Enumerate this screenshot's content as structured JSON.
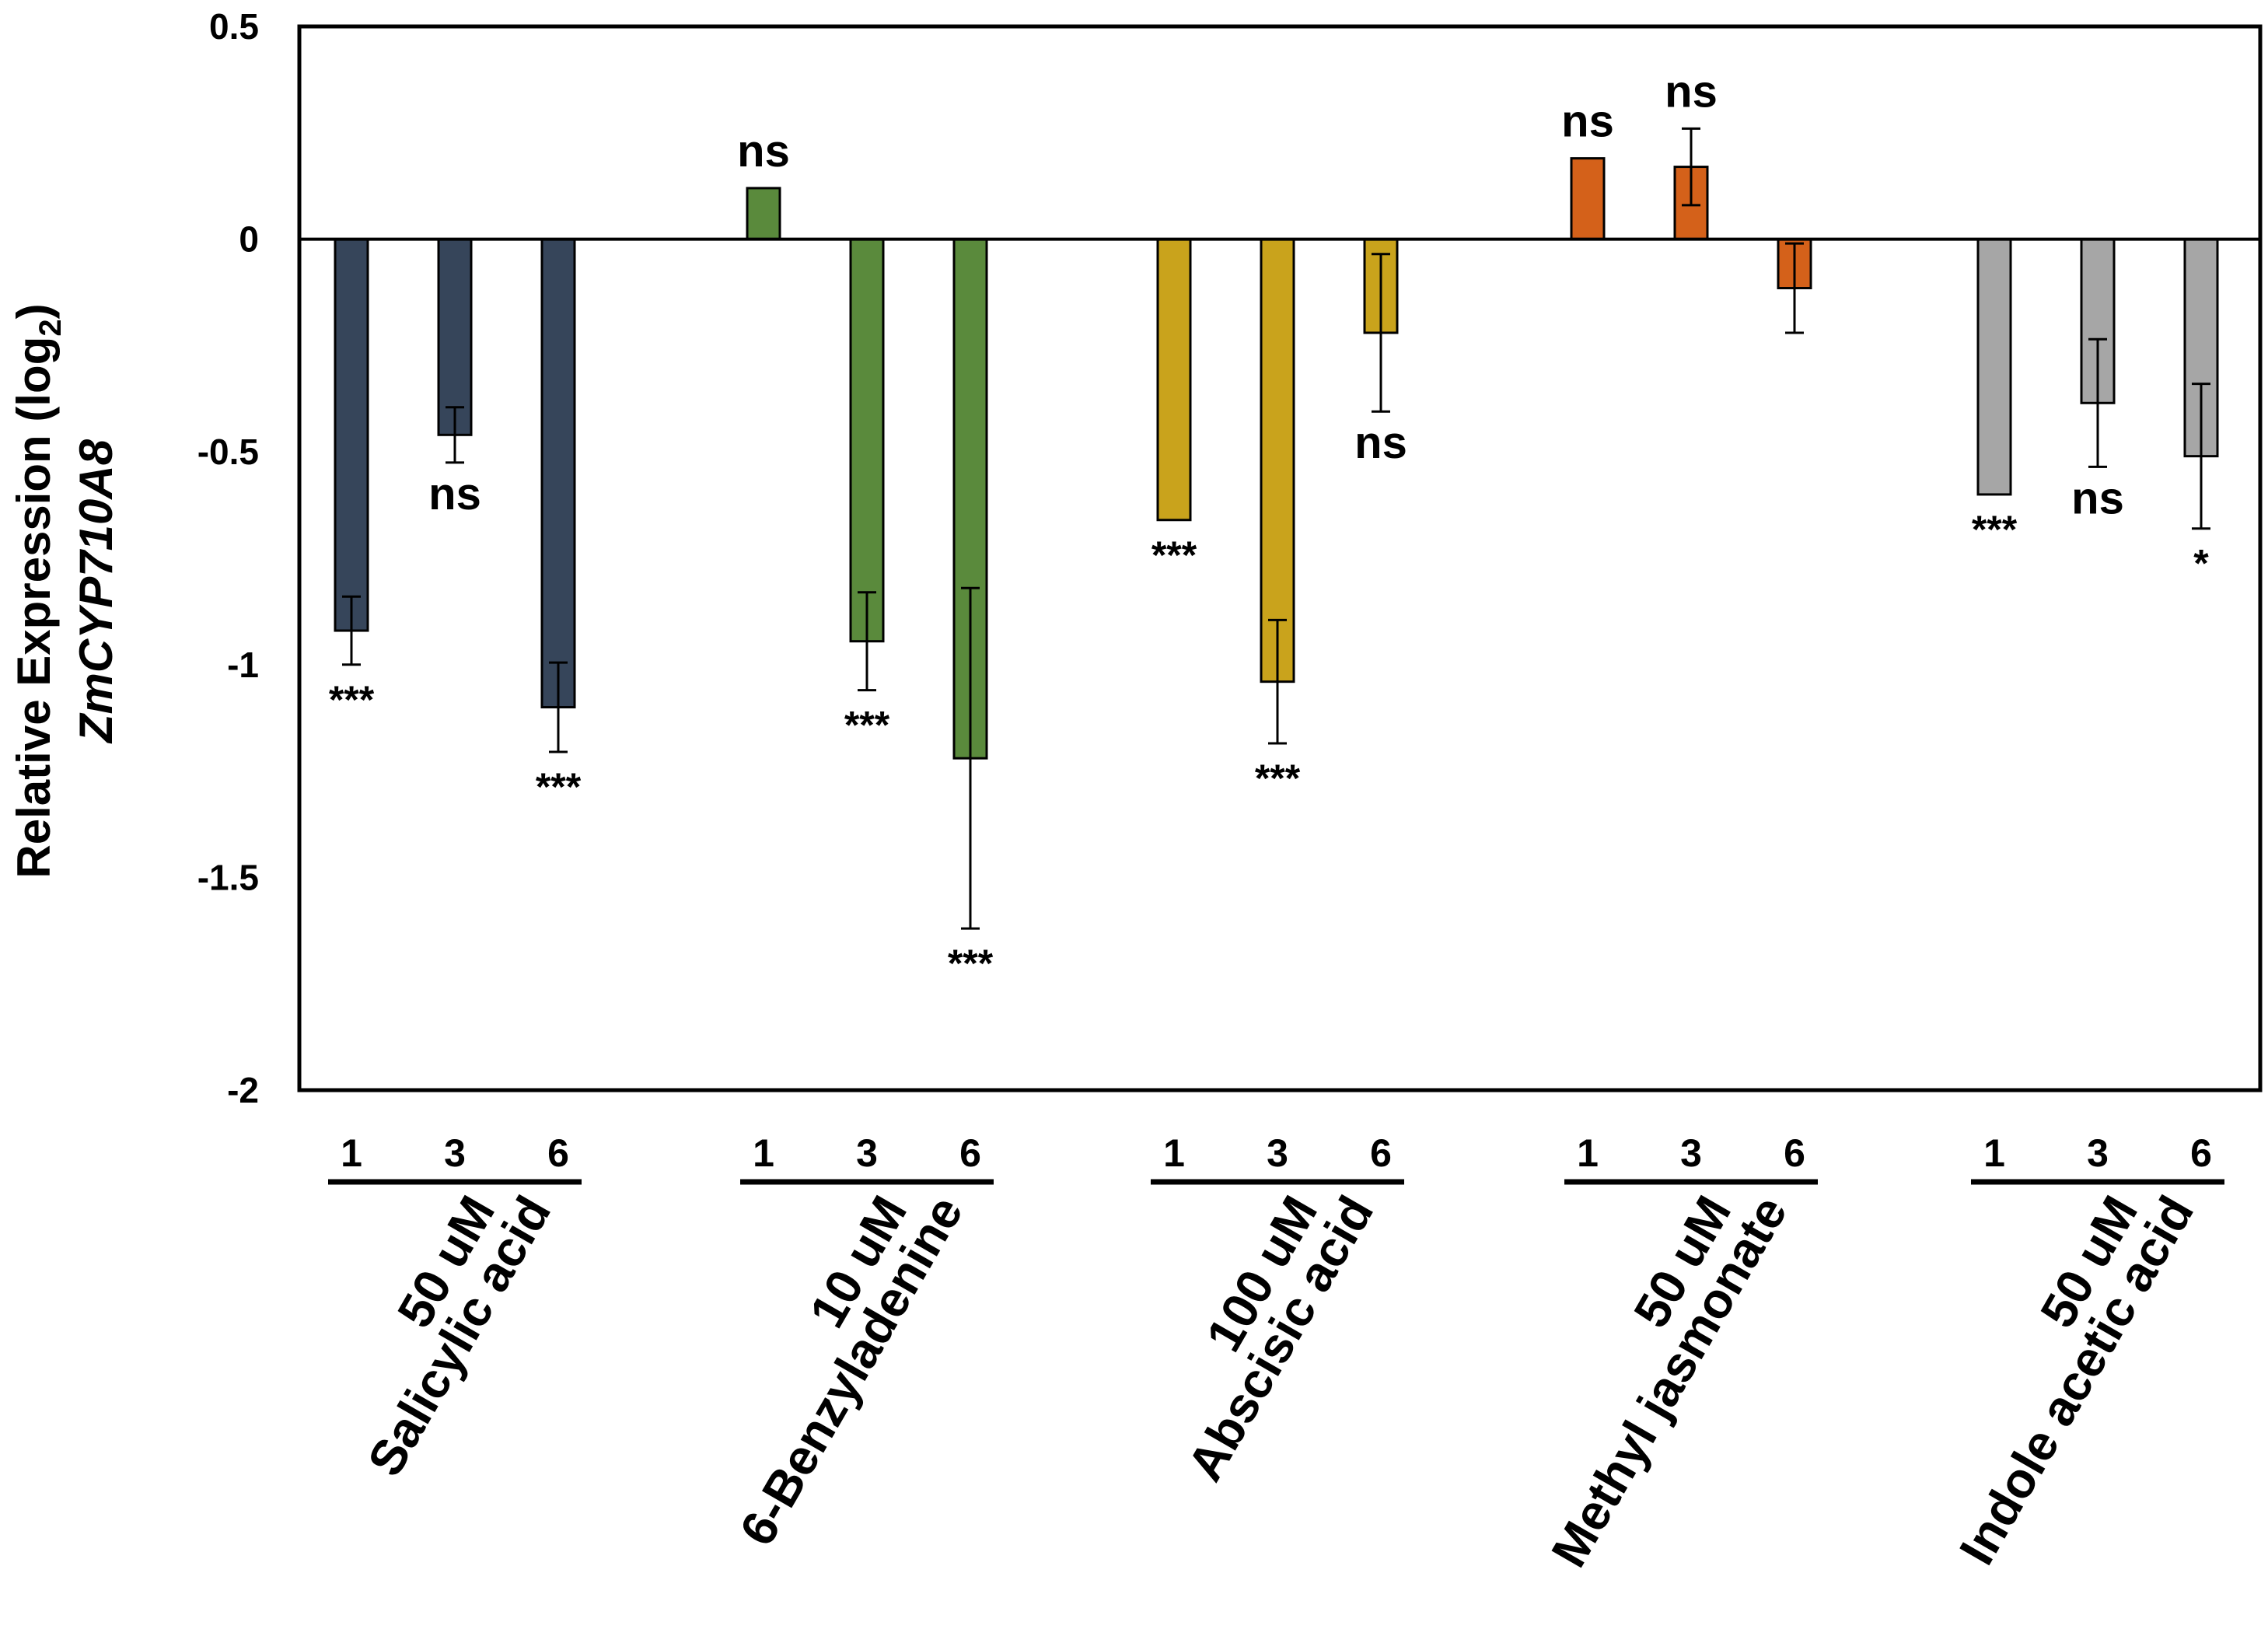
{
  "chart_data": {
    "type": "bar",
    "title": "",
    "xlabel": "",
    "ylabel_line1": "Relative Expression (log",
    "ylabel_sub": "2",
    "ylabel_close": ")",
    "ylabel_gene": "ZmCYP710A8",
    "ylim": [
      -2,
      0.5
    ],
    "yticks": [
      0.5,
      0,
      -0.5,
      -1,
      -1.5,
      -2
    ],
    "ytick_labels": [
      "0.5",
      "0",
      "-0.5",
      "-1",
      "-1.5",
      "-2"
    ],
    "time_labels": [
      "1",
      "3",
      "6"
    ],
    "groups": [
      {
        "name_line1": "50 uM",
        "name_line2": "Salicylic acid",
        "color": "#36455a",
        "values": [
          -0.92,
          -0.46,
          -1.1
        ],
        "errors": [
          0.08,
          0.065,
          0.105
        ],
        "significance": [
          "***",
          "ns",
          "***"
        ]
      },
      {
        "name_line1": "10 uM",
        "name_line2": "6-Benzyladenine",
        "color": "#5a8a3c",
        "values": [
          0.12,
          -0.945,
          -1.22
        ],
        "errors": [
          0.0,
          0.115,
          0.4
        ],
        "significance": [
          "ns",
          "***",
          "***"
        ]
      },
      {
        "name_line1": "100 uM",
        "name_line2": "Abscisic acid",
        "color": "#c9a31c",
        "values": [
          -0.66,
          -1.04,
          -0.22
        ],
        "errors": [
          0.0,
          0.145,
          0.185
        ],
        "significance": [
          "***",
          "***",
          "ns"
        ]
      },
      {
        "name_line1": "50 uM",
        "name_line2": "Methyl jasmonate",
        "color": "#d4611a",
        "values": [
          0.19,
          0.17,
          -0.115
        ],
        "errors": [
          0.0,
          0.09,
          0.105
        ],
        "significance": [
          "ns",
          "ns",
          ""
        ]
      },
      {
        "name_line1": "50 uM",
        "name_line2": "Indole acetic acid",
        "color": "#a6a6a6",
        "values": [
          -0.6,
          -0.385,
          -0.51
        ],
        "errors": [
          0.0,
          0.15,
          0.17
        ],
        "significance": [
          "***",
          "ns",
          "*"
        ]
      }
    ]
  }
}
